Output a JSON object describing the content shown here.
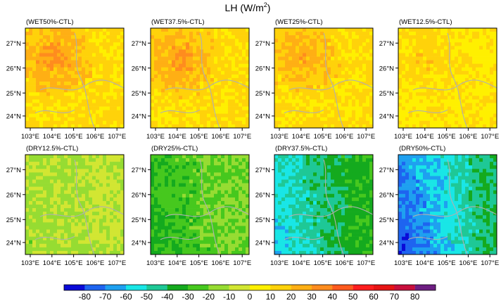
{
  "chart_data": {
    "type": "heatmap",
    "title": "LH (W/m²)",
    "title_base": "LH (W/m",
    "title_sup": "2",
    "title_end": ")",
    "x_ticks": [
      "103°E",
      "104°E",
      "105°E",
      "106°E",
      "107°E"
    ],
    "y_ticks": [
      "27°N",
      "26°N",
      "25°N",
      "24°N"
    ],
    "colorbar": {
      "labels": [
        "-80",
        "-70",
        "-60",
        "-50",
        "-40",
        "-30",
        "-20",
        "-10",
        "0",
        "10",
        "20",
        "30",
        "40",
        "50",
        "60",
        "70",
        "80"
      ],
      "colors": [
        "#0a0ad8",
        "#1e64f0",
        "#1ea0f0",
        "#19e6e6",
        "#1ec896",
        "#14aa1e",
        "#46c81e",
        "#96dc32",
        "#d2e632",
        "#fff000",
        "#ffd20a",
        "#ffaf14",
        "#ff8c1e",
        "#ff5a1e",
        "#ff1e1e",
        "#e61414",
        "#c80f3c",
        "#6e1e82"
      ]
    },
    "panels": [
      {
        "label": "(WET50%-CTL)",
        "base": 12,
        "level": 0.5,
        "sign": 1
      },
      {
        "label": "(WET37.5%-CTL)",
        "base": 12,
        "level": 0.45,
        "sign": 1
      },
      {
        "label": "(WET25%-CTL)",
        "base": 11,
        "level": 0.4,
        "sign": 1
      },
      {
        "label": "(WET12.5%-CTL)",
        "base": 8,
        "level": 0.2,
        "sign": 1
      },
      {
        "label": "(DRY12.5%-CTL)",
        "base": -8,
        "level": 0.15,
        "sign": -1
      },
      {
        "label": "(DRY25%-CTL)",
        "base": -18,
        "level": 0.4,
        "sign": -1
      },
      {
        "label": "(DRY37.5%-CTL)",
        "base": -32,
        "level": 0.7,
        "sign": -1
      },
      {
        "label": "(DRY50%-CTL)",
        "base": -40,
        "level": 1.0,
        "sign": -1
      }
    ]
  }
}
